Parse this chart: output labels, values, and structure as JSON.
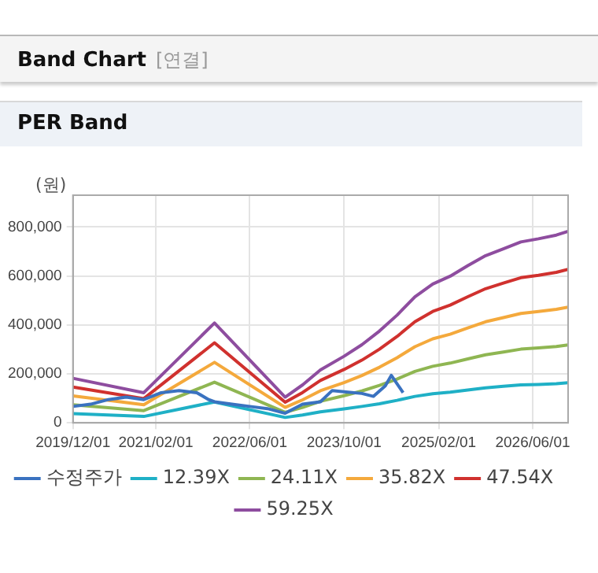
{
  "chart_data": {
    "type": "line",
    "title": "Band Chart",
    "subtitle": "PER Band",
    "annotations": [
      "[연결]"
    ],
    "ylabel": "(원)",
    "x": [
      "2019-12",
      "2020-12",
      "2021-12",
      "2022-12",
      "2023-03",
      "2023-06",
      "2023-10",
      "2024-01",
      "2024-04",
      "2024-07",
      "2024-10",
      "2025-01",
      "2025-04",
      "2025-07",
      "2025-10",
      "2026-01",
      "2026-04",
      "2026-07",
      "2026-10",
      "2026-12"
    ],
    "series": [
      {
        "name": "수정주가",
        "color": "#3a72c0",
        "x": [
          "2019-12",
          "2020-03",
          "2020-06",
          "2020-09",
          "2020-12",
          "2021-03",
          "2021-06",
          "2021-09",
          "2021-11",
          "2021-12",
          "2022-03",
          "2022-06",
          "2022-09",
          "2022-12",
          "2023-03",
          "2023-06",
          "2023-08",
          "2023-10",
          "2024-01",
          "2024-03",
          "2024-05",
          "2024-06",
          "2024-08"
        ],
        "values": [
          67000,
          76000,
          95000,
          105000,
          95000,
          123000,
          132000,
          123000,
          95000,
          86000,
          76000,
          67000,
          58000,
          39000,
          76000,
          86000,
          132000,
          127000,
          120000,
          108000,
          151000,
          194000,
          123000
        ]
      },
      {
        "name": "12.39X",
        "color": "#1fb0c6",
        "values": [
          38000,
          26000,
          85000,
          22000,
          32000,
          45000,
          57000,
          67000,
          78000,
          92000,
          108000,
          119000,
          125000,
          134000,
          143000,
          149000,
          155000,
          157000,
          160000,
          164000
        ]
      },
      {
        "name": "24.11X",
        "color": "#8fb652",
        "values": [
          74000,
          50000,
          166000,
          43000,
          63000,
          88000,
          111000,
          130000,
          153000,
          179000,
          210000,
          231000,
          244000,
          261000,
          278000,
          289000,
          301000,
          306000,
          312000,
          318000
        ]
      },
      {
        "name": "35.82X",
        "color": "#f4a93c",
        "values": [
          110000,
          74000,
          247000,
          63000,
          94000,
          131000,
          164000,
          193000,
          227000,
          266000,
          311000,
          343000,
          362000,
          388000,
          413000,
          430000,
          447000,
          455000,
          464000,
          473000
        ]
      },
      {
        "name": "47.54X",
        "color": "#d0312e",
        "values": [
          146000,
          99000,
          327000,
          84000,
          124000,
          173000,
          218000,
          256000,
          301000,
          353000,
          413000,
          455000,
          481000,
          515000,
          548000,
          571000,
          593000,
          603000,
          615000,
          627000
        ]
      },
      {
        "name": "59.25X",
        "color": "#8e4d9f",
        "values": [
          182000,
          123000,
          408000,
          105000,
          155000,
          216000,
          272000,
          319000,
          375000,
          440000,
          515000,
          567000,
          599000,
          642000,
          683000,
          711000,
          739000,
          752000,
          767000,
          782000
        ]
      }
    ],
    "xlim": [
      "2019-12-01",
      "2026-12-01"
    ],
    "xticks": [
      {
        "value": "2019-12-01",
        "label": "2019/12/01"
      },
      {
        "value": "2021-02-01",
        "label": "2021/02/01"
      },
      {
        "value": "2022-06-01",
        "label": "2022/06/01"
      },
      {
        "value": "2023-10-01",
        "label": "2023/10/01"
      },
      {
        "value": "2025-02-01",
        "label": "2025/02/01"
      },
      {
        "value": "2026-06-01",
        "label": "2026/06/01"
      }
    ],
    "ylim": [
      0,
      930000
    ],
    "yticks": [
      0,
      {
        "value": 200000,
        "label": "200,000"
      },
      {
        "value": 400000,
        "label": "400,000"
      },
      {
        "value": 600000,
        "label": "600,000"
      },
      {
        "value": 800000,
        "label": "800,000"
      }
    ],
    "grid": true,
    "legend": "bottom",
    "marker": "none",
    "line_style": "solid"
  }
}
